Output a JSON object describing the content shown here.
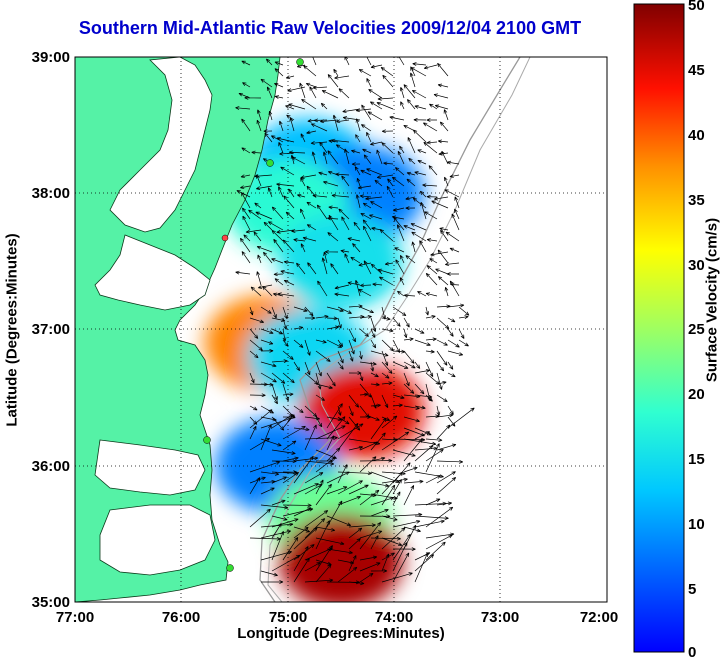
{
  "title": "Southern Mid-Atlantic Raw Velocities 2009/12/04 2100 GMT",
  "chart_data": {
    "type": "map",
    "xlabel": "Longitude (Degrees:Minutes)",
    "ylabel": "Latitude (Degrees:Minutes)",
    "x_ticks": [
      "77:00",
      "76:00",
      "75:00",
      "74:00",
      "73:00",
      "72:00"
    ],
    "y_ticks": [
      "39:00",
      "38:00",
      "37:00",
      "36:00",
      "35:00"
    ],
    "xlim": [
      -77,
      -72
    ],
    "ylim": [
      35,
      39
    ],
    "grid": true,
    "colorbar": {
      "label": "Surface Velocity (cm/s)",
      "range": [
        0,
        50
      ],
      "ticks": [
        "0",
        "5",
        "10",
        "15",
        "20",
        "25",
        "30",
        "35",
        "40",
        "45",
        "50"
      ],
      "colormap": "jet"
    },
    "colors": {
      "land": "#55f2a6",
      "water": "#ffffff",
      "arrows": "#000000",
      "title": "#0000cc",
      "station_marker": "#33dd33",
      "station_marker_alt": "#ff4444"
    },
    "velocity_regions": [
      {
        "lon": -74.8,
        "lat": 38.2,
        "speed": 12
      },
      {
        "lon": -74.3,
        "lat": 38.0,
        "speed": 8
      },
      {
        "lon": -75.0,
        "lat": 37.9,
        "speed": 18
      },
      {
        "lon": -74.5,
        "lat": 37.5,
        "speed": 15
      },
      {
        "lon": -75.2,
        "lat": 36.9,
        "speed": 38
      },
      {
        "lon": -74.8,
        "lat": 36.8,
        "speed": 14
      },
      {
        "lon": -74.3,
        "lat": 36.4,
        "speed": 45
      },
      {
        "lon": -75.1,
        "lat": 36.0,
        "speed": 8
      },
      {
        "lon": -74.6,
        "lat": 35.6,
        "speed": 22
      },
      {
        "lon": -74.5,
        "lat": 35.3,
        "speed": 48
      }
    ]
  }
}
